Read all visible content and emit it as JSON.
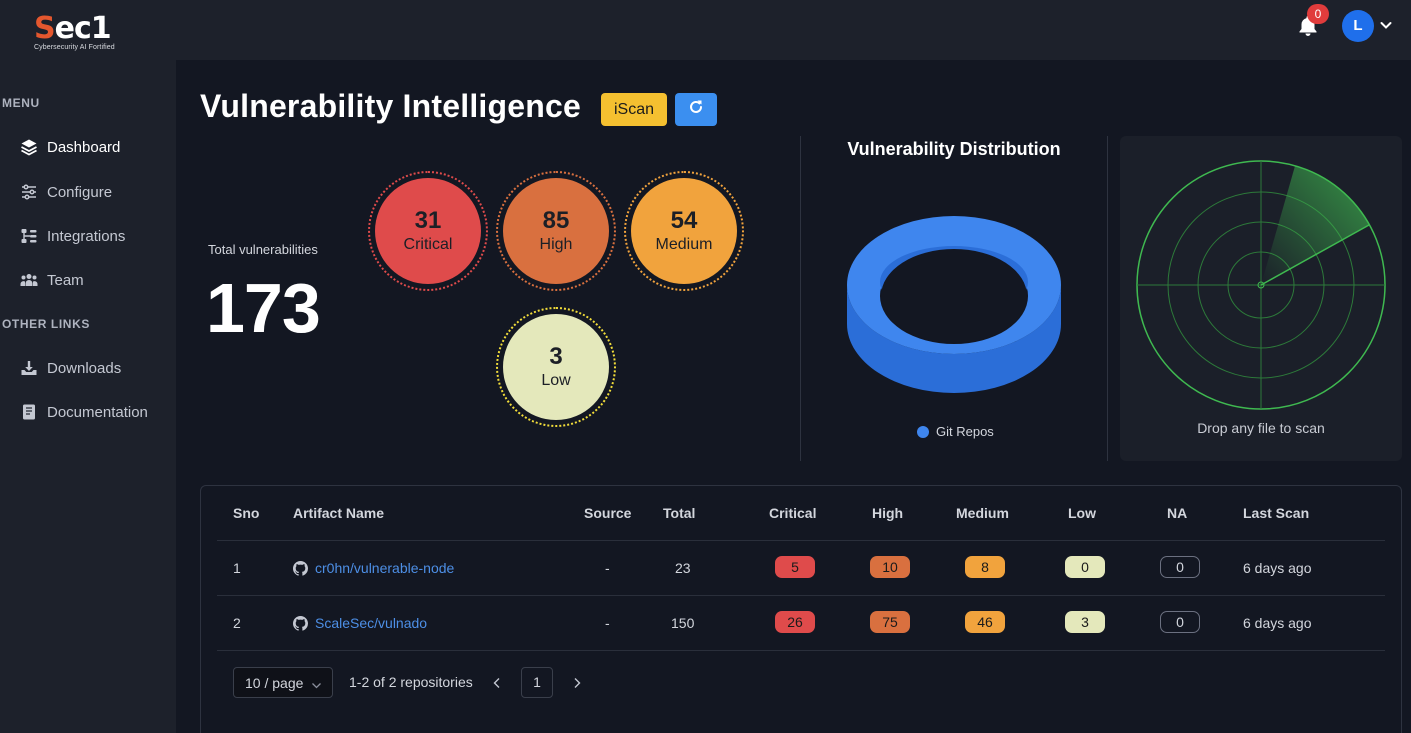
{
  "brand": {
    "logo_s": "S",
    "logo_rest": "ec1",
    "tagline": "Cybersecurity AI Fortified"
  },
  "header": {
    "notification_count": "0",
    "avatar_initial": "L"
  },
  "sidebar": {
    "menu_heading": "MENU",
    "items": [
      {
        "label": "Dashboard",
        "icon": "layers-icon"
      },
      {
        "label": "Configure",
        "icon": "sliders-icon"
      },
      {
        "label": "Integrations",
        "icon": "integrations-icon"
      },
      {
        "label": "Team",
        "icon": "team-icon"
      }
    ],
    "other_heading": "OTHER LINKS",
    "other_items": [
      {
        "label": "Downloads",
        "icon": "download-icon"
      },
      {
        "label": "Documentation",
        "icon": "book-icon"
      }
    ]
  },
  "main": {
    "title": "Vulnerability Intelligence",
    "iscan_label": "iScan",
    "total_label": "Total vulnerabilities",
    "total_value": "173",
    "severity": {
      "critical": {
        "count": "31",
        "label": "Critical",
        "color": "#df4b4b"
      },
      "high": {
        "count": "85",
        "label": "High",
        "color": "#d9703f"
      },
      "medium": {
        "count": "54",
        "label": "Medium",
        "color": "#f1a33d"
      },
      "low": {
        "count": "3",
        "label": "Low",
        "color": "#e4e8bb"
      }
    },
    "distribution_title": "Vulnerability Distribution",
    "distribution_legend": "Git Repos",
    "drop_text": "Drop any file to scan"
  },
  "chart_data": {
    "type": "pie",
    "title": "Vulnerability Distribution",
    "categories": [
      "Git Repos"
    ],
    "values": [
      100
    ],
    "legend": [
      "Git Repos"
    ]
  },
  "table": {
    "headers": [
      "Sno",
      "Artifact Name",
      "Source",
      "Total",
      "Critical",
      "High",
      "Medium",
      "Low",
      "NA",
      "Last Scan"
    ],
    "rows": [
      {
        "sno": "1",
        "artifact": "cr0hn/vulnerable-node",
        "source": "-",
        "total": "23",
        "critical": "5",
        "high": "10",
        "medium": "8",
        "low": "0",
        "na": "0",
        "last_scan": "6 days ago"
      },
      {
        "sno": "2",
        "artifact": "ScaleSec/vulnado",
        "source": "-",
        "total": "150",
        "critical": "26",
        "high": "75",
        "medium": "46",
        "low": "3",
        "na": "0",
        "last_scan": "6 days ago"
      }
    ]
  },
  "pagination": {
    "page_size": "10 / page",
    "info": "1-2 of 2 repositories",
    "current_page": "1"
  },
  "colors": {
    "accent_blue": "#3b8ff0",
    "iscan_yellow": "#f5c030",
    "radar_green": "#3fb950"
  }
}
